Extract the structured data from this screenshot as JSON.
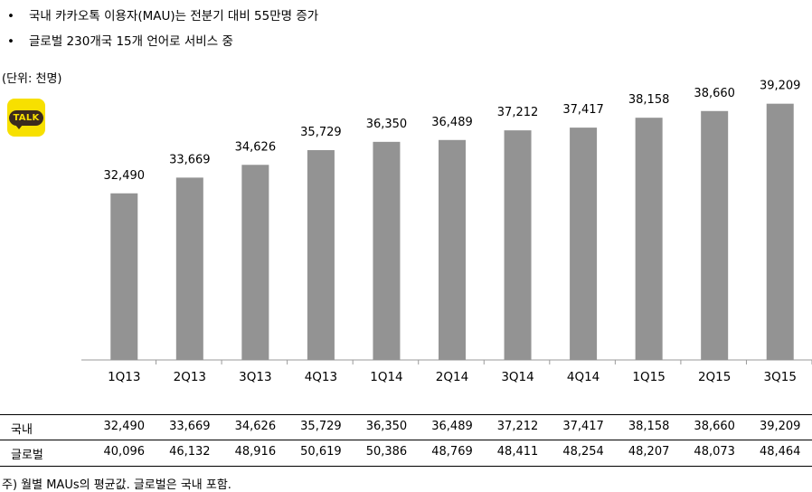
{
  "bullets": [
    {
      "marker": "•",
      "text": "국내 카카오톡 이용자(MAU)는 전분기 대비 55만명 증가"
    },
    {
      "marker": "•",
      "text": "글로벌 230개국 15개 언어로 서비스 중"
    }
  ],
  "unit_label": "(단위: 천명)",
  "logo": {
    "text": "TALK",
    "icon": "kakaotalk-logo-icon",
    "bg_color": "#F7E000",
    "bubble_color": "#3B2A1E"
  },
  "chart_data": {
    "type": "bar",
    "categories": [
      "1Q13",
      "2Q13",
      "3Q13",
      "4Q13",
      "1Q14",
      "2Q14",
      "3Q14",
      "4Q14",
      "1Q15",
      "2Q15",
      "3Q15"
    ],
    "values": [
      32490,
      33669,
      34626,
      35729,
      36350,
      36489,
      37212,
      37417,
      38158,
      38660,
      39209
    ],
    "value_labels": [
      "32,490",
      "33,669",
      "34,626",
      "35,729",
      "36,350",
      "36,489",
      "37,212",
      "37,417",
      "38,158",
      "38,660",
      "39,209"
    ],
    "bar_color": "#939393",
    "ylim": [
      20000,
      40000
    ],
    "grid": false,
    "title": "",
    "xlabel": "",
    "ylabel": ""
  },
  "table": {
    "rows": [
      {
        "label": "국내",
        "values": [
          "32,490",
          "33,669",
          "34,626",
          "35,729",
          "36,350",
          "36,489",
          "37,212",
          "37,417",
          "38,158",
          "38,660",
          "39,209"
        ]
      },
      {
        "label": "글로벌",
        "values": [
          "40,096",
          "46,132",
          "48,916",
          "50,619",
          "50,386",
          "48,769",
          "48,411",
          "48,254",
          "48,207",
          "48,073",
          "48,464"
        ]
      }
    ]
  },
  "footnote": "주) 월별 MAUs의 평균값. 글로벌은 국내 포함."
}
